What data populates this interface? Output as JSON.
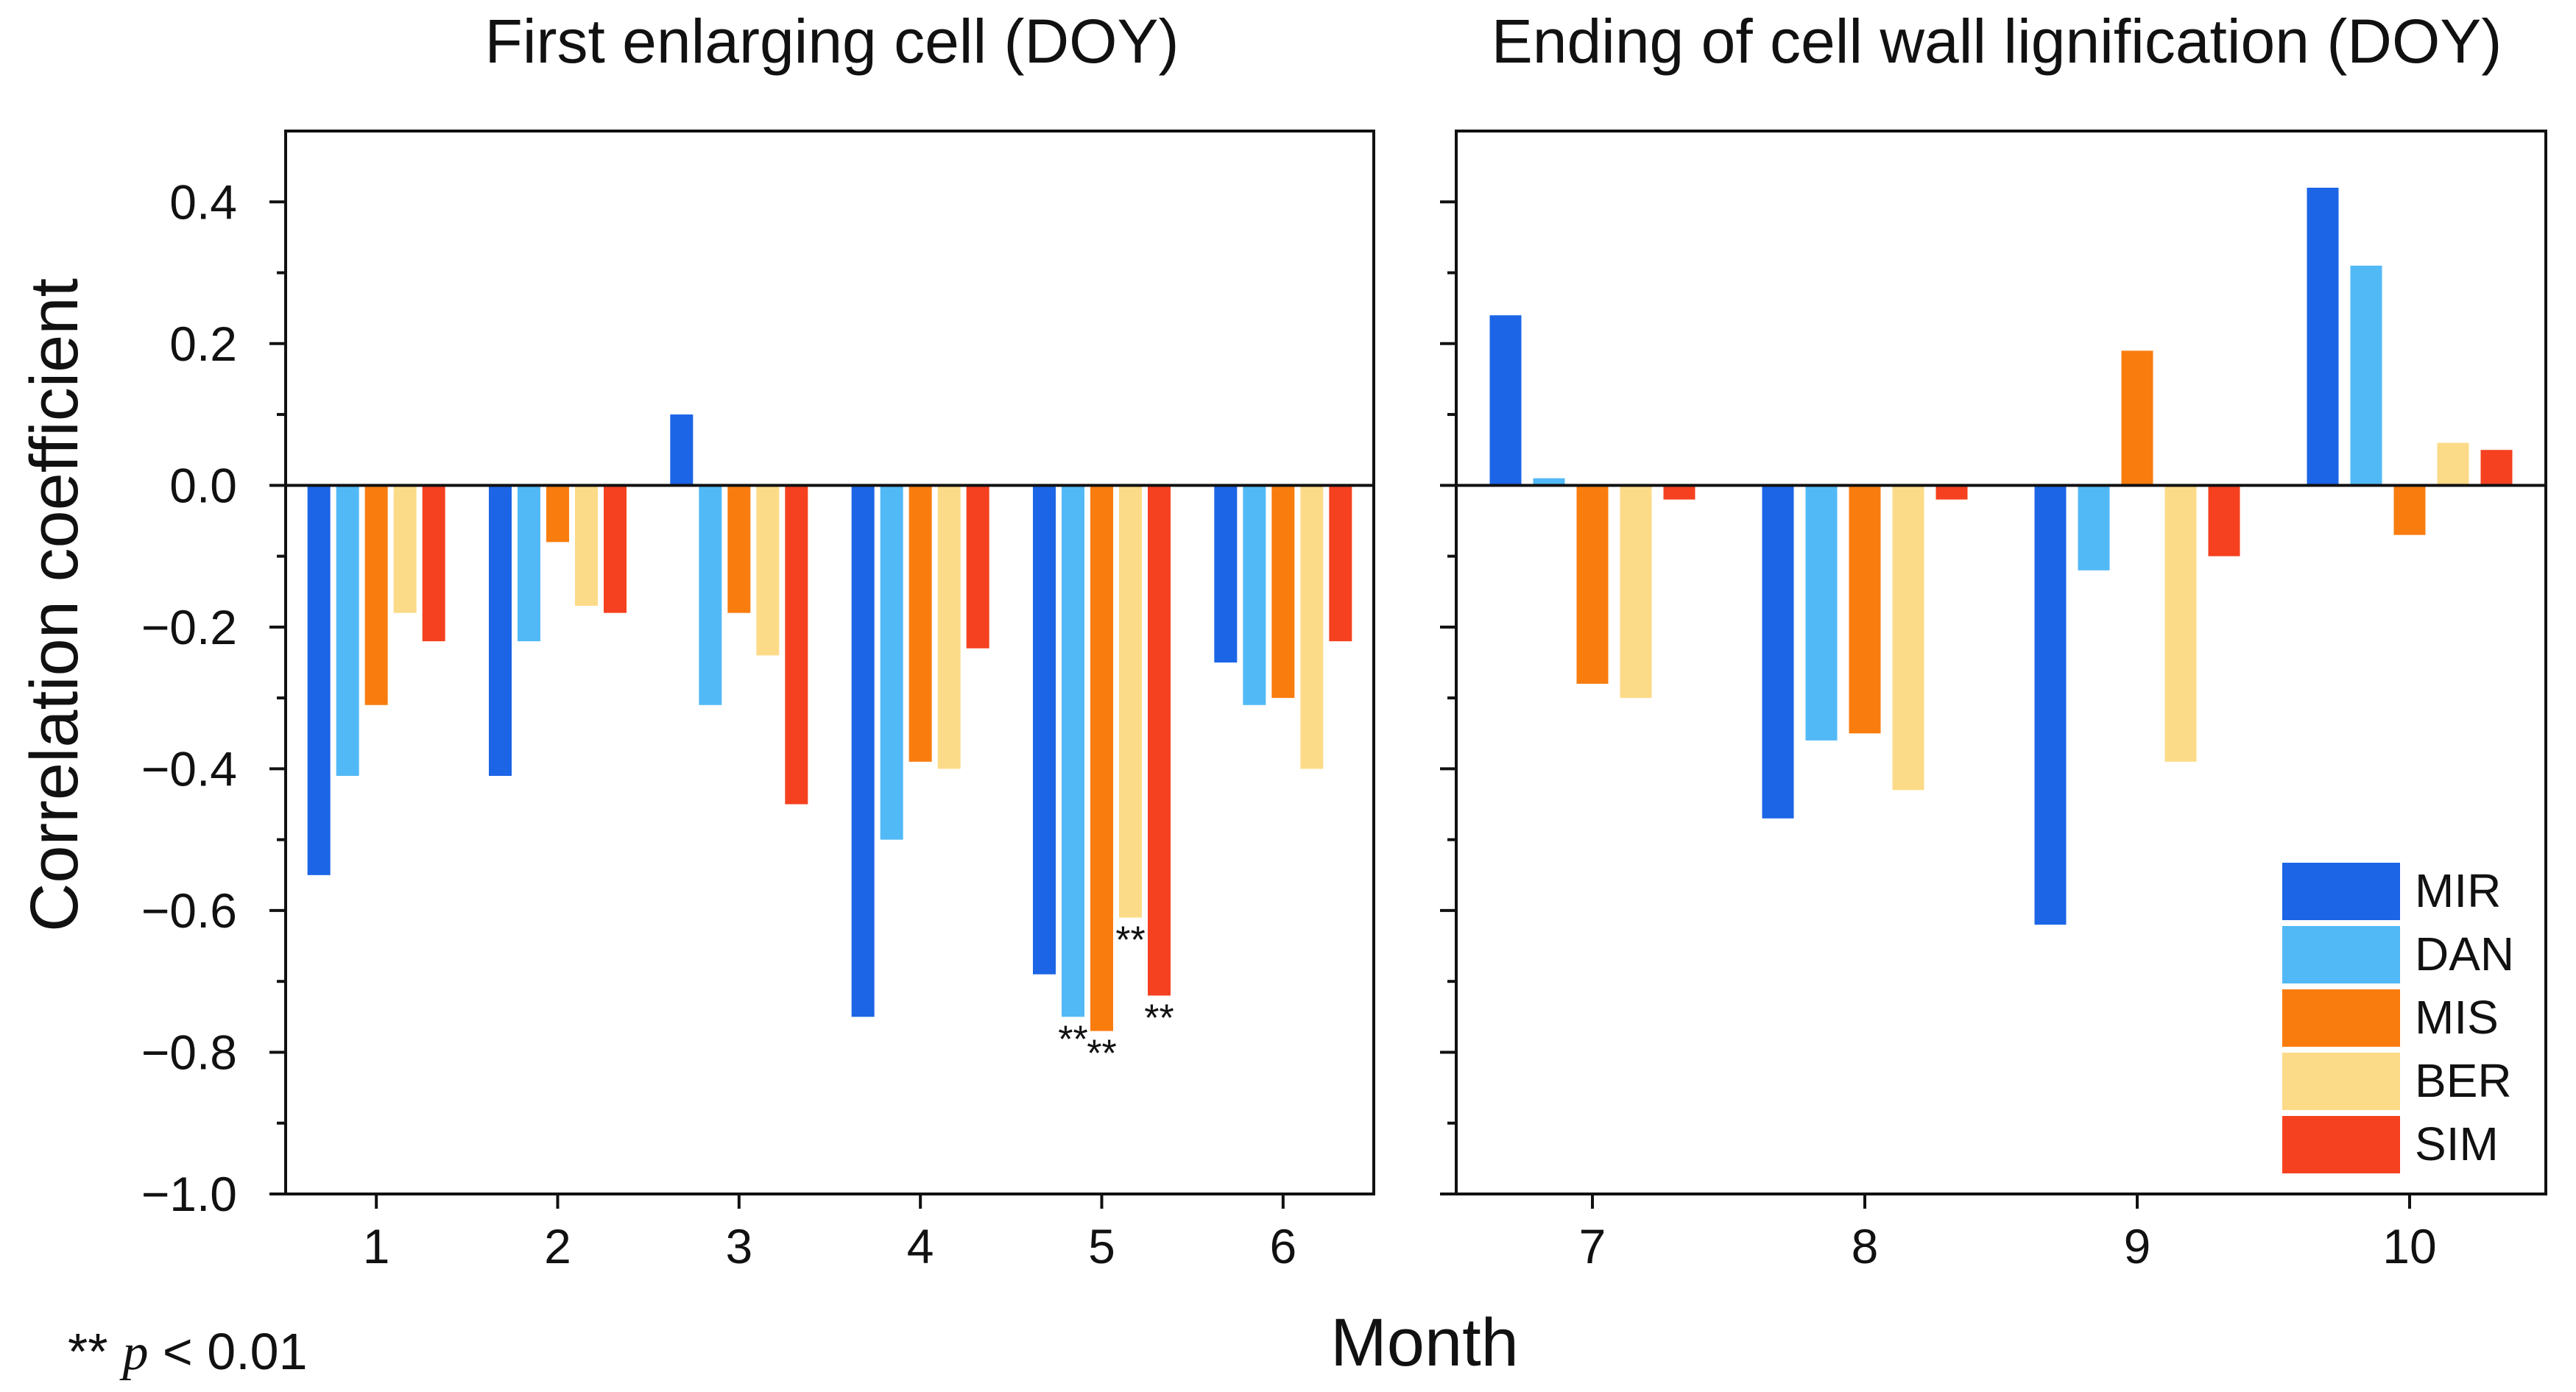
{
  "chart_data": [
    {
      "type": "bar",
      "title": "First enlarging cell (DOY)",
      "xlabel": "Month",
      "ylabel": "Correlation coefficient",
      "ylim": [
        -1.0,
        0.5
      ],
      "categories": [
        "1",
        "2",
        "3",
        "4",
        "5",
        "6"
      ],
      "series": [
        {
          "name": "MIR",
          "values": [
            -0.55,
            -0.41,
            0.1,
            -0.75,
            -0.69,
            -0.25
          ]
        },
        {
          "name": "DAN",
          "values": [
            -0.41,
            -0.22,
            -0.31,
            -0.5,
            -0.75,
            -0.31
          ]
        },
        {
          "name": "MIS",
          "values": [
            -0.31,
            -0.08,
            -0.18,
            -0.39,
            -0.77,
            -0.3
          ]
        },
        {
          "name": "BER",
          "values": [
            -0.18,
            -0.17,
            -0.24,
            -0.4,
            -0.61,
            -0.4
          ]
        },
        {
          "name": "SIM",
          "values": [
            -0.22,
            -0.18,
            -0.45,
            -0.23,
            -0.72,
            -0.22
          ]
        }
      ],
      "significance": [
        {
          "category": "5",
          "series": "DAN",
          "label": "**"
        },
        {
          "category": "5",
          "series": "MIS",
          "label": "**"
        },
        {
          "category": "5",
          "series": "BER",
          "label": "**"
        },
        {
          "category": "5",
          "series": "SIM",
          "label": "**"
        }
      ]
    },
    {
      "type": "bar",
      "title": "Ending of cell wall lignification (DOY)",
      "xlabel": "Month",
      "ylabel": "",
      "ylim": [
        -1.0,
        0.5
      ],
      "categories": [
        "7",
        "8",
        "9",
        "10"
      ],
      "series": [
        {
          "name": "MIR",
          "values": [
            0.24,
            -0.47,
            -0.62,
            0.42
          ]
        },
        {
          "name": "DAN",
          "values": [
            0.01,
            -0.36,
            -0.12,
            0.31
          ]
        },
        {
          "name": "MIS",
          "values": [
            -0.28,
            -0.35,
            0.19,
            -0.07
          ]
        },
        {
          "name": "BER",
          "values": [
            -0.3,
            -0.43,
            -0.39,
            0.06
          ]
        },
        {
          "name": "SIM",
          "values": [
            -0.02,
            -0.02,
            -0.1,
            0.05
          ]
        }
      ],
      "legend": "bottom-right"
    }
  ],
  "yticks": [
    "0.4",
    "0.2",
    "0.0",
    "−0.2",
    "−0.4",
    "−0.6",
    "−0.8",
    "−1.0"
  ],
  "ytick_values": [
    0.4,
    0.2,
    0.0,
    -0.2,
    -0.4,
    -0.6,
    -0.8,
    -1.0
  ],
  "colors": {
    "MIR": "#1b65e6",
    "DAN": "#52b9f7",
    "MIS": "#f97c0f",
    "BER": "#fcdb88",
    "SIM": "#f5411f"
  },
  "footnote": {
    "stars": "**",
    "p": "p",
    "rest": " < 0.01"
  }
}
